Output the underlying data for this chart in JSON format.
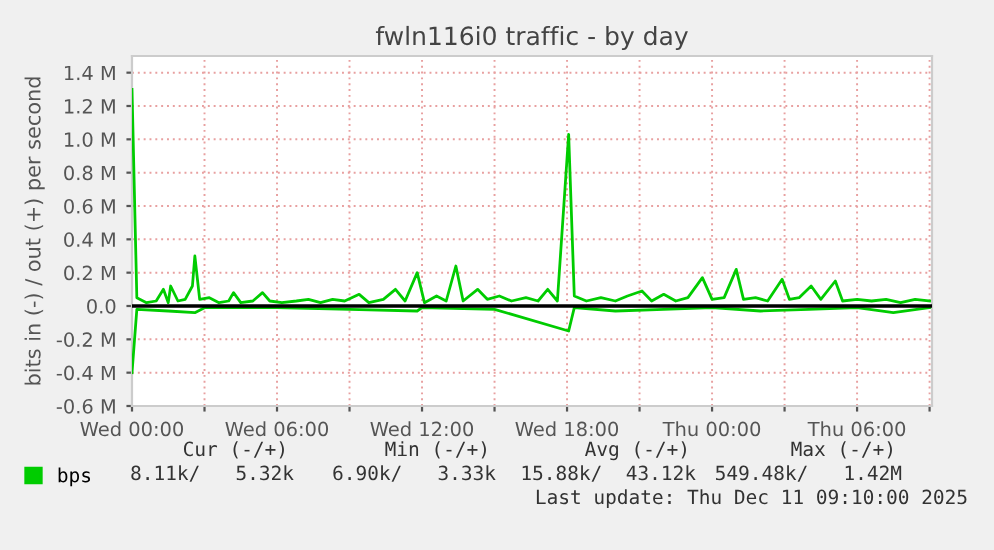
{
  "chart_data": {
    "type": "line",
    "title": "fwln116i0 traffic - by day",
    "ylabel": "bits in (-) / out (+) per second",
    "xlim": [
      "2025-12-10T00:00",
      "2025-12-11T09:06"
    ],
    "ylim": [
      -0.6,
      1.5
    ],
    "xticks": [
      {
        "value": "2025-12-10T00:00",
        "label": "Wed 00:00"
      },
      {
        "value": "2025-12-10T03:00",
        "label": null
      },
      {
        "value": "2025-12-10T06:00",
        "label": "Wed 06:00"
      },
      {
        "value": "2025-12-10T09:00",
        "label": null
      },
      {
        "value": "2025-12-10T12:00",
        "label": "Wed 12:00"
      },
      {
        "value": "2025-12-10T15:00",
        "label": null
      },
      {
        "value": "2025-12-10T18:00",
        "label": "Wed 18:00"
      },
      {
        "value": "2025-12-10T21:00",
        "label": null
      },
      {
        "value": "2025-12-11T00:00",
        "label": "Thu 00:00"
      },
      {
        "value": "2025-12-11T03:00",
        "label": null
      },
      {
        "value": "2025-12-11T06:00",
        "label": "Thu 06:00"
      },
      {
        "value": "2025-12-11T09:00",
        "label": null
      }
    ],
    "yticks": [
      {
        "value": -0.6,
        "label": "-0.6 M"
      },
      {
        "value": -0.4,
        "label": "-0.4 M"
      },
      {
        "value": -0.2,
        "label": "-0.2 M"
      },
      {
        "value": 0,
        "label": "0.0"
      },
      {
        "value": 0.2,
        "label": "0.2 M"
      },
      {
        "value": 0.4,
        "label": "0.4 M"
      },
      {
        "value": 0.6,
        "label": "0.6 M"
      },
      {
        "value": 0.8,
        "label": "0.8 M"
      },
      {
        "value": 1.0,
        "label": "1.0 M"
      },
      {
        "value": 1.2,
        "label": "1.2 M"
      },
      {
        "value": 1.4,
        "label": "1.4 M"
      }
    ],
    "grid": true,
    "legend": "bottom left",
    "ref_lines": [
      {
        "axis": "y",
        "value": 0,
        "label": null,
        "color": "#000000"
      }
    ],
    "series": [
      {
        "name": "bps",
        "color": "#00cc00",
        "x": [
          "2025-12-10T00:00",
          "2025-12-10T00:12",
          "2025-12-10T00:36",
          "2025-12-10T01:00",
          "2025-12-10T01:18",
          "2025-12-10T01:30",
          "2025-12-10T01:36",
          "2025-12-10T01:54",
          "2025-12-10T02:12",
          "2025-12-10T02:30",
          "2025-12-10T02:36",
          "2025-12-10T02:48",
          "2025-12-10T03:12",
          "2025-12-10T03:36",
          "2025-12-10T04:00",
          "2025-12-10T04:12",
          "2025-12-10T04:30",
          "2025-12-10T05:00",
          "2025-12-10T05:24",
          "2025-12-10T05:42",
          "2025-12-10T06:12",
          "2025-12-10T06:48",
          "2025-12-10T07:18",
          "2025-12-10T07:48",
          "2025-12-10T08:18",
          "2025-12-10T08:48",
          "2025-12-10T09:24",
          "2025-12-10T09:48",
          "2025-12-10T10:24",
          "2025-12-10T10:54",
          "2025-12-10T11:18",
          "2025-12-10T11:48",
          "2025-12-10T12:06",
          "2025-12-10T12:36",
          "2025-12-10T13:00",
          "2025-12-10T13:24",
          "2025-12-10T13:42",
          "2025-12-10T14:18",
          "2025-12-10T14:42",
          "2025-12-10T15:12",
          "2025-12-10T15:42",
          "2025-12-10T16:18",
          "2025-12-10T16:48",
          "2025-12-10T17:12",
          "2025-12-10T17:36",
          "2025-12-10T18:04",
          "2025-12-10T18:18",
          "2025-12-10T18:48",
          "2025-12-10T19:24",
          "2025-12-10T20:00",
          "2025-12-10T20:30",
          "2025-12-10T21:06",
          "2025-12-10T21:30",
          "2025-12-10T22:00",
          "2025-12-10T22:30",
          "2025-12-10T23:00",
          "2025-12-10T23:36",
          "2025-12-11T00:00",
          "2025-12-11T00:30",
          "2025-12-11T01:00",
          "2025-12-11T01:18",
          "2025-12-11T01:48",
          "2025-12-11T02:18",
          "2025-12-11T02:54",
          "2025-12-11T03:12",
          "2025-12-11T03:36",
          "2025-12-11T04:06",
          "2025-12-11T04:30",
          "2025-12-11T05:06",
          "2025-12-11T05:24",
          "2025-12-11T06:00",
          "2025-12-11T06:36",
          "2025-12-11T07:12",
          "2025-12-11T07:48",
          "2025-12-11T08:24",
          "2025-12-11T09:00"
        ],
        "values": [
          1.3,
          0.05,
          0.02,
          0.03,
          0.1,
          0.02,
          0.12,
          0.03,
          0.04,
          0.12,
          0.3,
          0.04,
          0.05,
          0.02,
          0.03,
          0.08,
          0.02,
          0.03,
          0.08,
          0.03,
          0.02,
          0.03,
          0.04,
          0.02,
          0.04,
          0.03,
          0.07,
          0.02,
          0.04,
          0.1,
          0.03,
          0.2,
          0.02,
          0.06,
          0.03,
          0.24,
          0.03,
          0.1,
          0.04,
          0.06,
          0.03,
          0.05,
          0.03,
          0.1,
          0.03,
          1.03,
          0.06,
          0.03,
          0.05,
          0.03,
          0.06,
          0.09,
          0.03,
          0.07,
          0.03,
          0.05,
          0.17,
          0.04,
          0.05,
          0.22,
          0.04,
          0.05,
          0.03,
          0.16,
          0.04,
          0.05,
          0.12,
          0.04,
          0.15,
          0.03,
          0.04,
          0.03,
          0.04,
          0.02,
          0.04,
          0.03
        ]
      },
      {
        "color": "#00cc00",
        "x": [
          "2025-12-10T00:00",
          "2025-12-10T00:12",
          "2025-12-10T01:30",
          "2025-12-10T02:36",
          "2025-12-10T03:00",
          "2025-12-10T06:00",
          "2025-12-10T09:00",
          "2025-12-10T11:48",
          "2025-12-10T12:00",
          "2025-12-10T15:00",
          "2025-12-10T18:04",
          "2025-12-10T18:18",
          "2025-12-10T20:00",
          "2025-12-10T22:00",
          "2025-12-11T00:00",
          "2025-12-11T02:00",
          "2025-12-11T04:00",
          "2025-12-11T06:00",
          "2025-12-11T07:30",
          "2025-12-11T09:00"
        ],
        "values": [
          -0.4,
          -0.02,
          -0.03,
          -0.04,
          -0.01,
          -0.01,
          -0.02,
          -0.03,
          -0.01,
          -0.02,
          -0.15,
          -0.01,
          -0.03,
          -0.02,
          -0.01,
          -0.03,
          -0.02,
          -0.01,
          -0.04,
          -0.01
        ]
      }
    ],
    "annotations": [
      "Cur (-/+)",
      "Min (-/+)",
      "Avg (-/+)",
      "Max (-/+)",
      "8.11k/   5.32k",
      "6.90k/   3.33k",
      "15.88k/  43.12k",
      "549.48k/   1.42M",
      "Last update: Thu Dec 11 09:10:00 2025"
    ]
  }
}
